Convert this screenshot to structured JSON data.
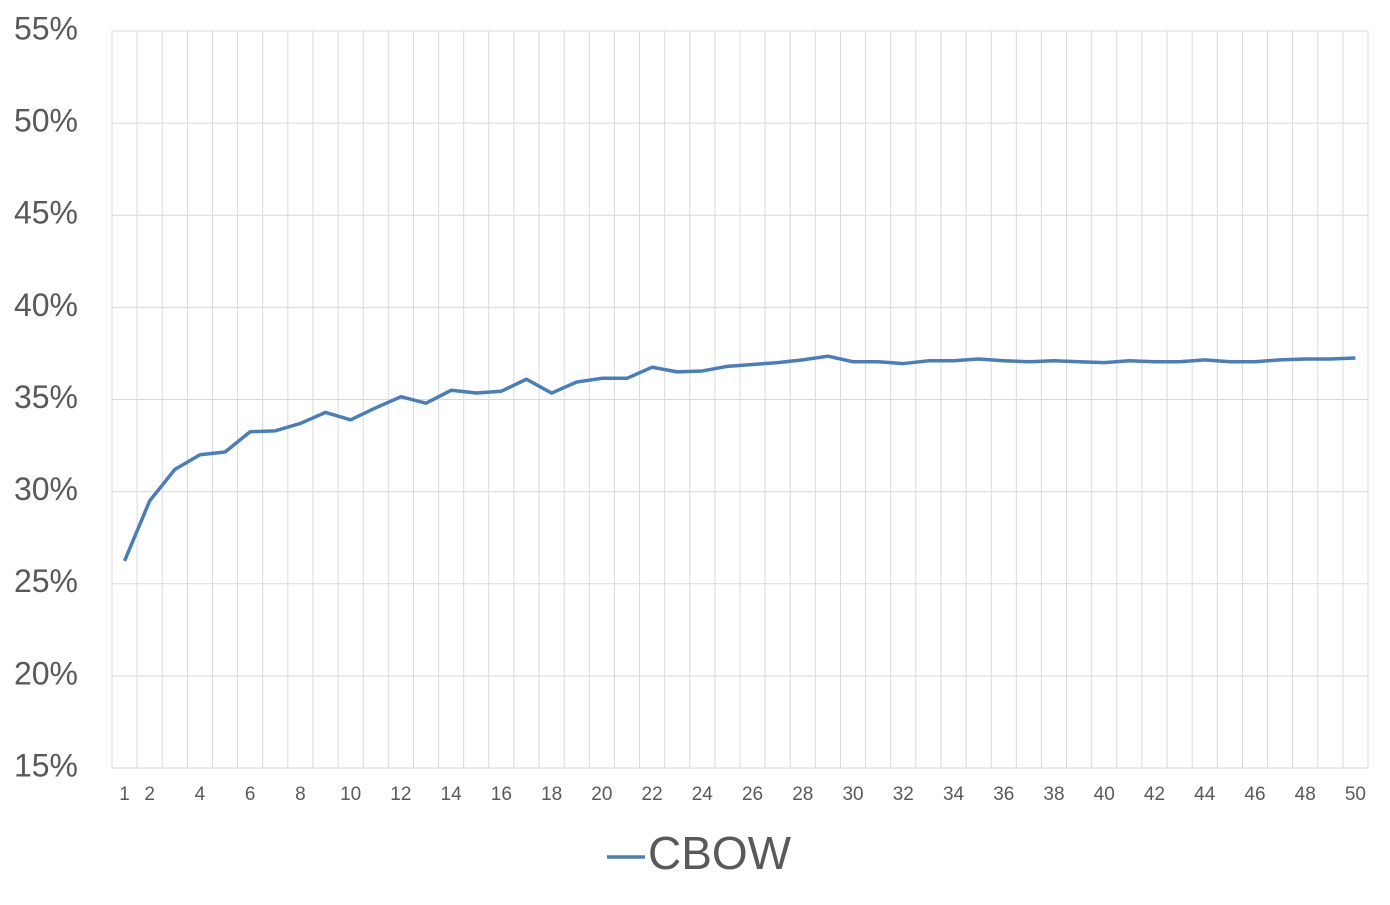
{
  "chart_data": {
    "type": "line",
    "categories": [
      1,
      2,
      null,
      4,
      null,
      6,
      null,
      8,
      null,
      10,
      null,
      12,
      null,
      14,
      null,
      16,
      null,
      18,
      null,
      20,
      null,
      22,
      null,
      24,
      null,
      26,
      null,
      28,
      null,
      30,
      null,
      32,
      null,
      34,
      null,
      36,
      null,
      38,
      null,
      40,
      null,
      42,
      null,
      44,
      null,
      46,
      null,
      48,
      null,
      50
    ],
    "series": [
      {
        "name": "CBOW",
        "color": "#4a7ebb",
        "values": [
          26.24,
          29.5,
          31.2,
          32.0,
          32.15,
          33.25,
          33.3,
          33.7,
          34.3,
          33.9,
          34.55,
          35.15,
          34.8,
          35.5,
          35.35,
          35.45,
          36.1,
          35.35,
          35.95,
          36.15,
          36.15,
          36.75,
          36.5,
          36.55,
          36.8,
          36.9,
          37.0,
          37.15,
          37.35,
          37.05,
          37.05,
          36.95,
          37.1,
          37.1,
          37.2,
          37.1,
          37.05,
          37.1,
          37.05,
          37.0,
          37.1,
          37.05,
          37.05,
          37.15,
          37.05,
          37.05,
          37.15,
          37.2,
          37.2,
          37.25
        ]
      }
    ],
    "ylim": [
      15,
      55
    ],
    "yticks": [
      {
        "value": 15,
        "label": "15%"
      },
      {
        "value": 20,
        "label": "20%"
      },
      {
        "value": 25,
        "label": "25%"
      },
      {
        "value": 30,
        "label": "30%"
      },
      {
        "value": 35,
        "label": "35%"
      },
      {
        "value": 40,
        "label": "40%"
      },
      {
        "value": 45,
        "label": "45%"
      },
      {
        "value": 50,
        "label": "50%"
      },
      {
        "value": 55,
        "label": "55%"
      }
    ],
    "grid": true,
    "legend": "bottom"
  }
}
